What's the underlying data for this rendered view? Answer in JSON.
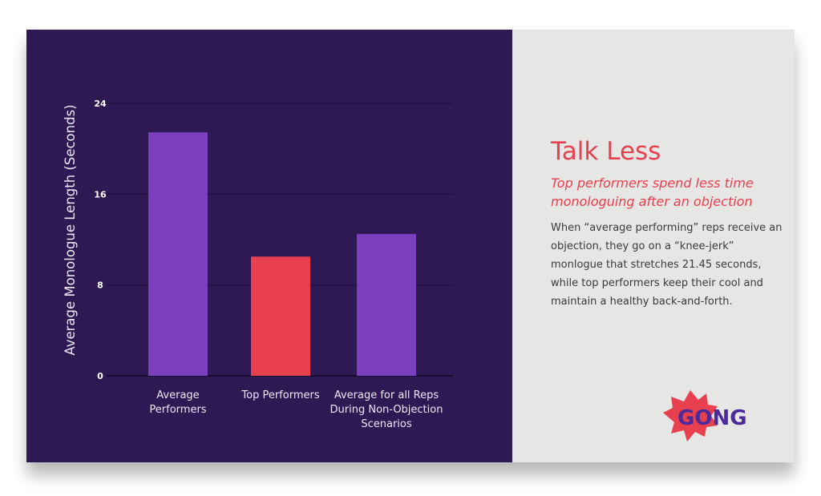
{
  "chart_data": {
    "type": "bar",
    "categories": [
      [
        "Average",
        "Performers"
      ],
      [
        "Top Performers"
      ],
      [
        "Average for all Reps",
        "During Non-Objection",
        "Scenarios"
      ]
    ],
    "values": [
      21.45,
      10.5,
      12.5
    ],
    "bar_colors": [
      "#7b3fbe",
      "#e8404f",
      "#7b3fbe"
    ],
    "ylabel": "Average Monologue Length (Seconds)",
    "ylim": [
      0,
      24
    ],
    "yticks": [
      0,
      8,
      16,
      24
    ],
    "grid": true
  },
  "content": {
    "title": "Talk Less",
    "subtitle": "Top performers spend less time monologuing after an objection",
    "body": "When “average performing” reps receive an objection, they go on a “knee-jerk” monlogue that stretches 21.45 seconds, while top performers keep their cool and maintain a healthy back-and-forth."
  },
  "logo": {
    "text_a": "GO",
    "text_b": "NG",
    "burst_color": "#e8404f",
    "text_a_color": "#4b2a9a",
    "text_b_color": "#4b2a9a"
  },
  "colors": {
    "left_bg": "#2f1955",
    "right_bg": "#e6e6e5",
    "accent": "#e8404f",
    "bar_purple": "#7b3fbe"
  }
}
